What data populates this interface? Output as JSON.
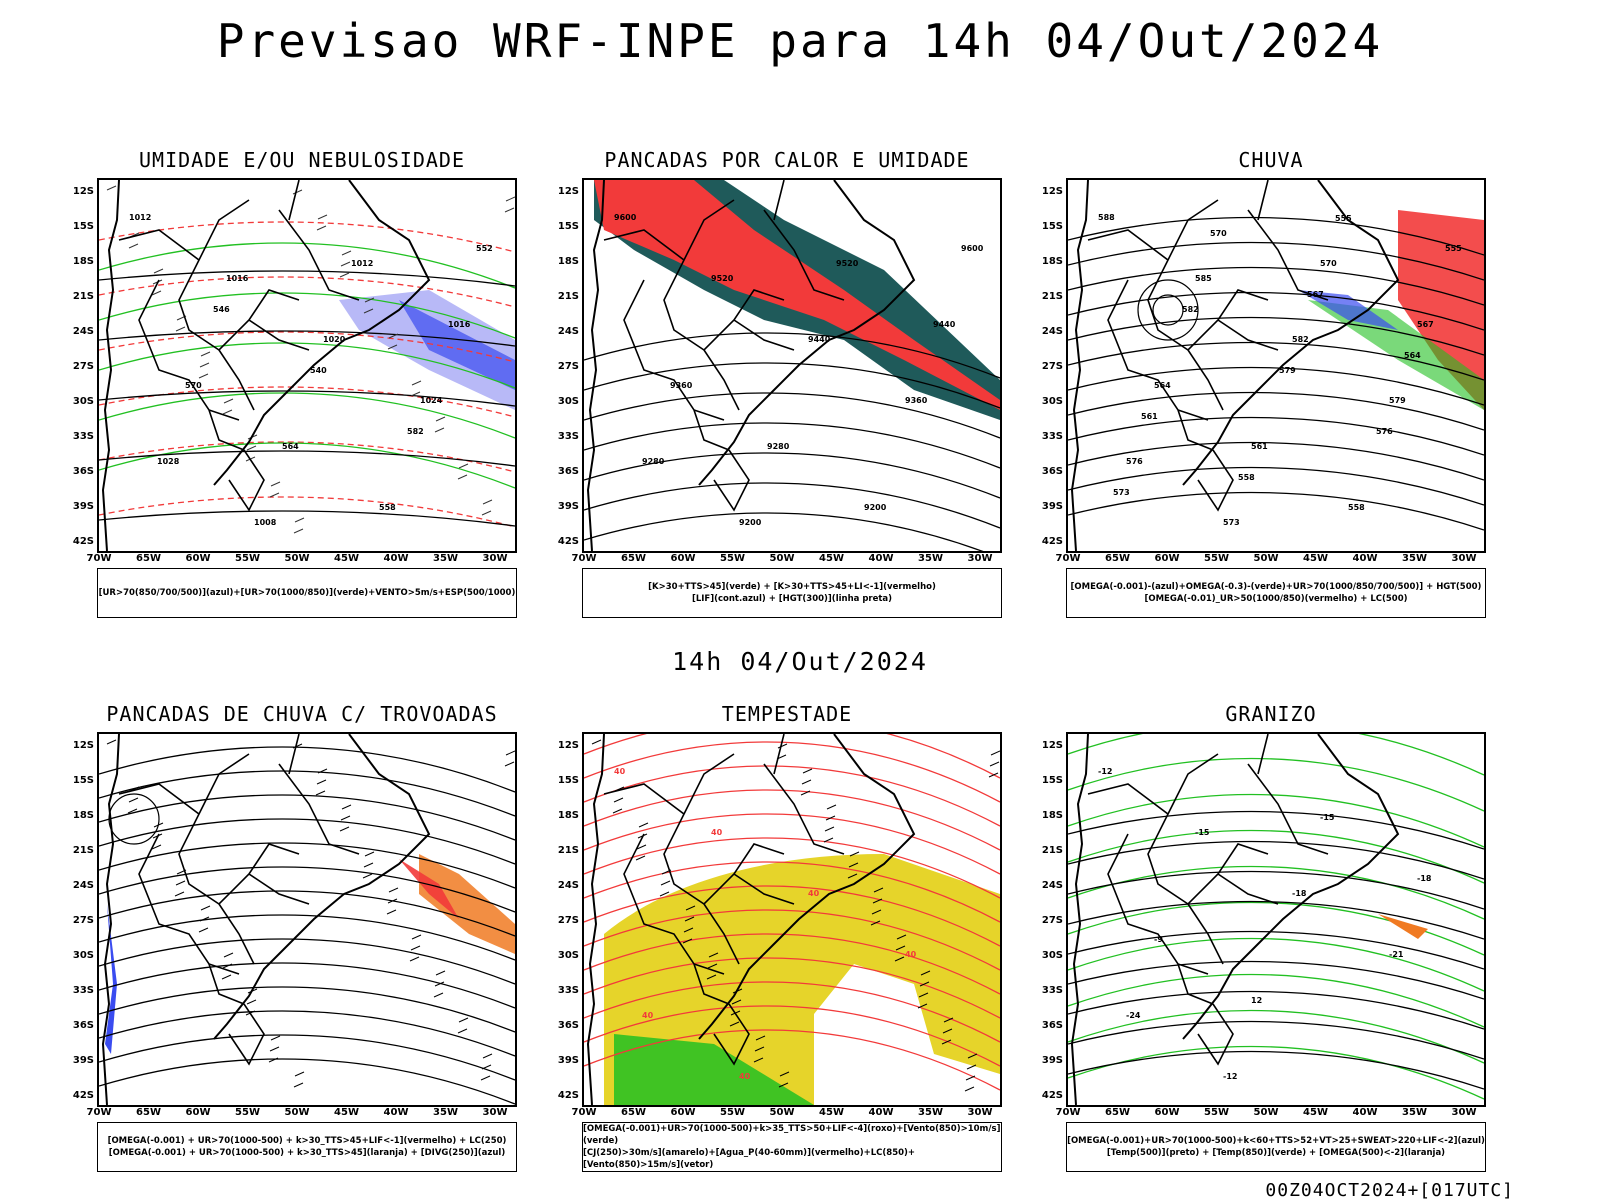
{
  "title": "Previsao WRF-INPE  para 14h 04/Out/2024",
  "mid_date": "14h 04/Out/2024",
  "footer_code": "00Z04OCT2024+[017UTC]",
  "lat_ticks": [
    "12S",
    "15S",
    "18S",
    "21S",
    "24S",
    "27S",
    "30S",
    "33S",
    "36S",
    "39S",
    "42S"
  ],
  "lon_ticks": [
    "70W",
    "65W",
    "60W",
    "55W",
    "50W",
    "45W",
    "40W",
    "35W",
    "30W"
  ],
  "colors": {
    "red": "#f23a3a",
    "green": "#22c022",
    "blue": "#3a4cf0",
    "yellow": "#e6d42a",
    "orange": "#f07a22",
    "teal": "#1f5a5a",
    "lightblue": "#a6a8f5"
  },
  "panels": [
    {
      "title": "UMIDADE E/OU NEBULOSIDADE",
      "legend": [
        "[UR>70(850/700/500)](azul)+[UR>70(1000/850)](verde)+VENTO>5m/s+ESP(500/1000)"
      ],
      "labels": [
        "1012",
        "1016",
        "1020",
        "1024",
        "1028",
        "1008",
        "1012",
        "1016",
        "570",
        "564",
        "558",
        "552",
        "546",
        "540",
        "582"
      ]
    },
    {
      "title": "PANCADAS POR CALOR E UMIDADE",
      "legend": [
        "[K>30+TTS>45](verde) + [K>30+TTS>45+LI<-1](vermelho)",
        "[LIF](cont.azul) + [HGT(300)](linha preta)"
      ],
      "labels": [
        "9600",
        "9520",
        "9440",
        "9360",
        "9280",
        "9200",
        "9520",
        "9440",
        "9360",
        "9280",
        "9200",
        "9600"
      ]
    },
    {
      "title": "CHUVA",
      "legend": [
        "[OMEGA(-0.001)-(azul)+OMEGA(-0.3)-(verde)+UR>70(1000/850/700/500)] + HGT(500)",
        "[OMEGA(-0.01)_UR>50(1000/850)(vermelho) + LC(500)"
      ],
      "labels": [
        "588",
        "585",
        "582",
        "579",
        "576",
        "573",
        "570",
        "567",
        "564",
        "561",
        "558",
        "555",
        "582",
        "579",
        "576",
        "573",
        "570",
        "567",
        "564",
        "561",
        "558",
        "555"
      ]
    },
    {
      "title": "PANCADAS DE CHUVA C/ TROVOADAS",
      "legend": [
        "[OMEGA(-0.001) + UR>70(1000-500) + k>30_TTS>45+LIF<-1](vermelho) + LC(250)",
        "[OMEGA(-0.001) + UR>70(1000-500) + k>30_TTS>45](laranja) + [DIVG(250)](azul)"
      ],
      "labels": []
    },
    {
      "title": "TEMPESTADE",
      "legend": [
        "[OMEGA(-0.001)+UR>70(1000-500)+k>35_TTS>50+LIF<-4](roxo)+[Vento(850)>10m/s](verde)",
        "[CJ(250)>30m/s](amarelo)+[Agua_P(40-60mm)](vermelho)+LC(850)+[Vento(850)>15m/s](vetor)"
      ],
      "labels": [
        "40",
        "40",
        "40",
        "40",
        "40",
        "40"
      ]
    },
    {
      "title": "GRANIZO",
      "legend": [
        "[OMEGA(-0.001)+UR>70(1000-500)+k<60+TTS>52+VT>25+SWEAT>220+LIF<-2](azul)",
        "[Temp(500)](preto) + [Temp(850)](verde) + [OMEGA(500)<-2](laranja)"
      ],
      "labels": [
        "-12",
        "-15",
        "-18",
        "-21",
        "-24",
        "-12",
        "-15",
        "-18",
        "-9",
        "12"
      ]
    }
  ]
}
